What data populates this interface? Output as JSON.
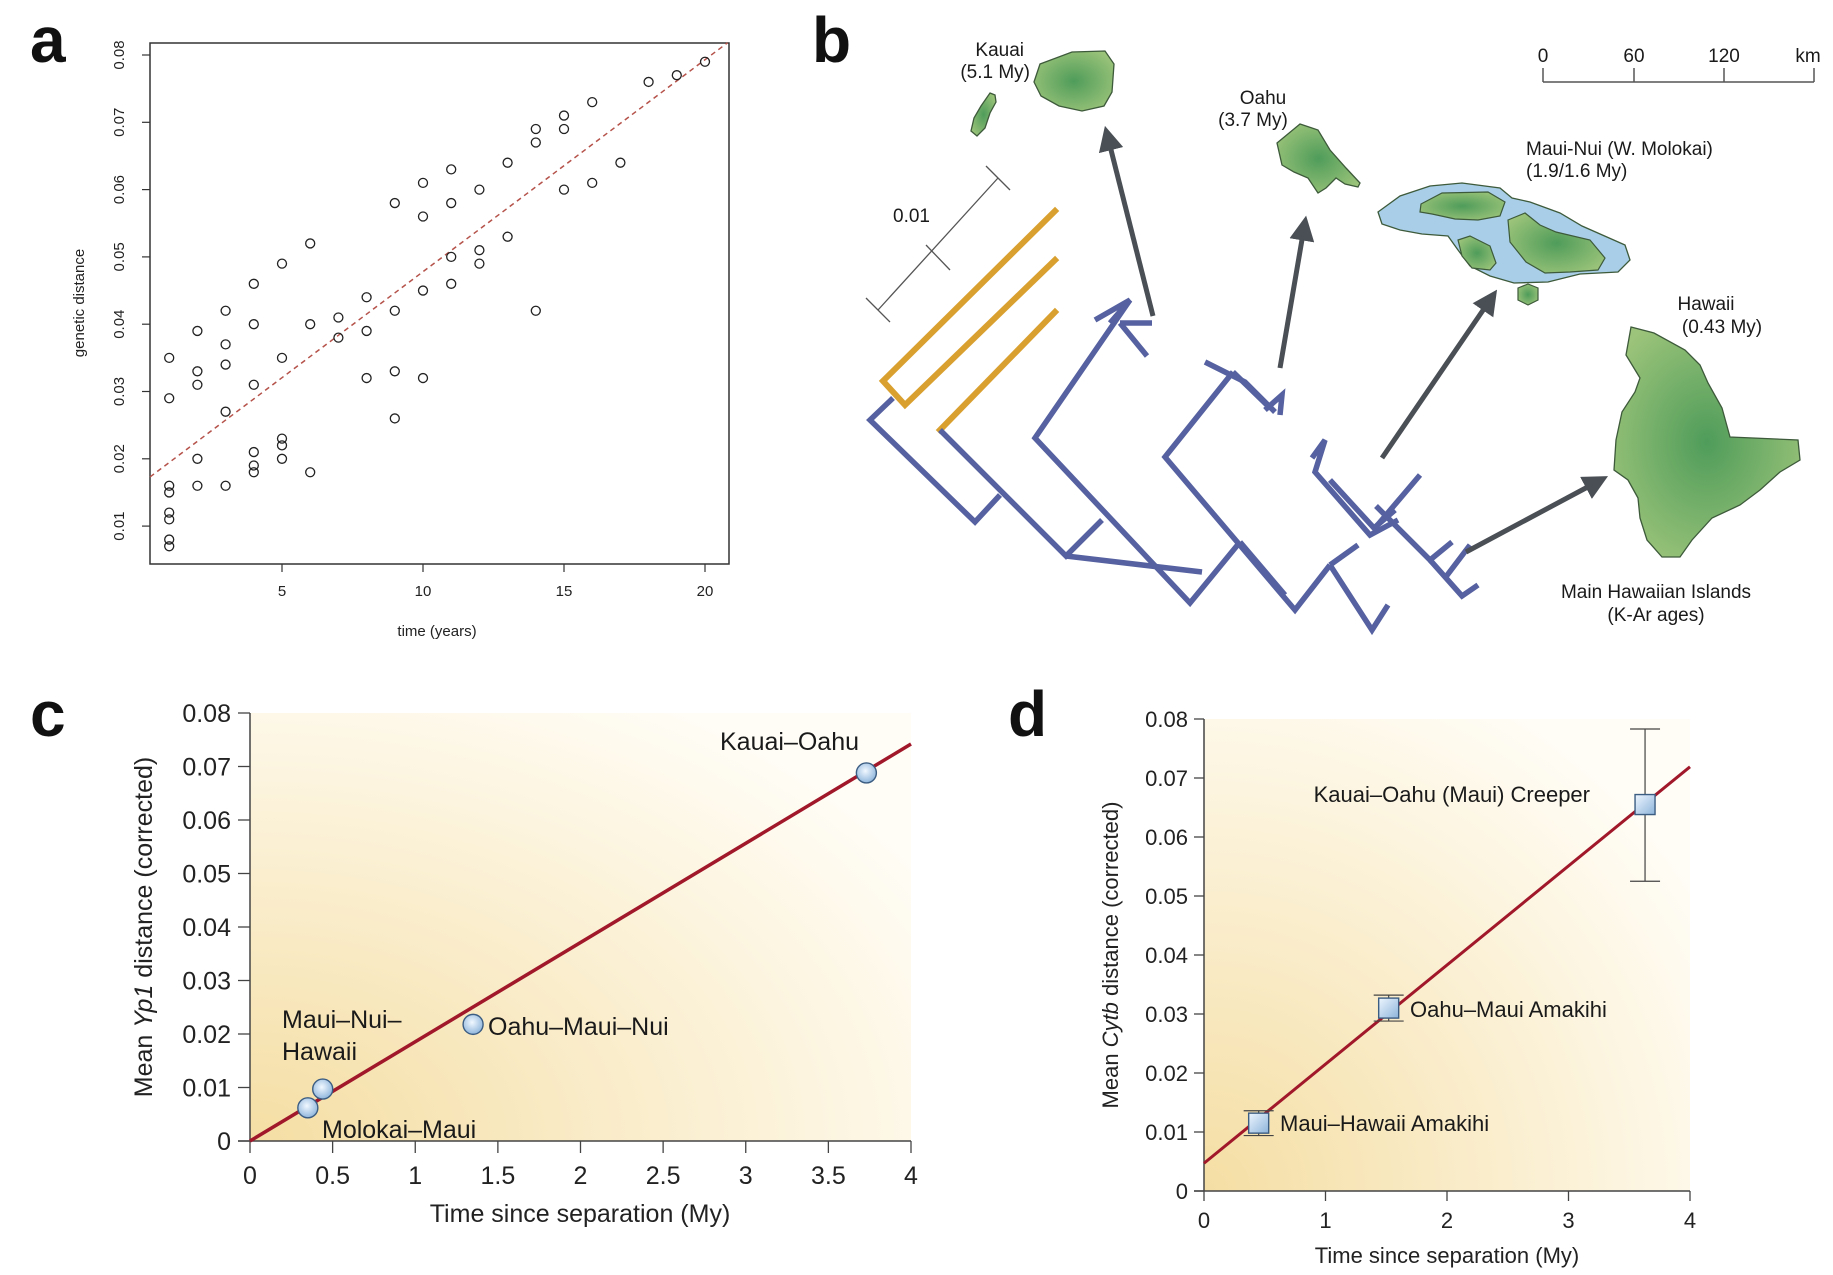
{
  "panels": {
    "a": {
      "letter": "a"
    },
    "b": {
      "letter": "b"
    },
    "c": {
      "letter": "c"
    },
    "d": {
      "letter": "d"
    }
  },
  "map": {
    "scale_bar": {
      "ticks": [
        "0",
        "60",
        "120"
      ],
      "unit": "km"
    },
    "tree_scale_label": "0.01",
    "islands": [
      {
        "id": "kauai",
        "name": "Kauai",
        "age": "(5.1 My)"
      },
      {
        "id": "oahu",
        "name": "Oahu",
        "age": "(3.7 My)"
      },
      {
        "id": "mauinui",
        "name": "Maui-Nui (W. Molokai)",
        "age": "(1.9/1.6 My)"
      },
      {
        "id": "hawaii",
        "name": "Hawaii",
        "age": "(0.43 My)"
      }
    ],
    "caption_line1": "Main Hawaiian Islands",
    "caption_line2": "(K-Ar ages)",
    "colors": {
      "ingroup_branch": "#5561a0",
      "outgroup_branch": "#d9a030",
      "arrow": "#4a4f55",
      "land": "#6aaa5e",
      "shelf": "#a9cfe8"
    }
  },
  "chart_data": [
    {
      "panel": "a",
      "type": "scatter",
      "title": "",
      "xlabel": "time (years)",
      "ylabel": "genetic distance",
      "xlim": [
        0.3,
        20.8
      ],
      "ylim": [
        0.004,
        0.082
      ],
      "xticks": [
        5,
        10,
        15,
        20
      ],
      "yticks": [
        0.01,
        0.02,
        0.03,
        0.04,
        0.05,
        0.06,
        0.07,
        0.08
      ],
      "ytick_labels": [
        "0.01",
        "0.02",
        "0.03",
        "0.04",
        "0.05",
        "0.06",
        "0.07",
        "0.08"
      ],
      "marker": "open-circle",
      "grid": false,
      "points": [
        [
          1,
          0.035
        ],
        [
          1,
          0.029
        ],
        [
          1,
          0.016
        ],
        [
          1,
          0.015
        ],
        [
          1,
          0.012
        ],
        [
          1,
          0.011
        ],
        [
          1,
          0.008
        ],
        [
          1,
          0.007
        ],
        [
          2,
          0.039
        ],
        [
          2,
          0.033
        ],
        [
          2,
          0.031
        ],
        [
          2,
          0.02
        ],
        [
          2,
          0.016
        ],
        [
          3,
          0.042
        ],
        [
          3,
          0.037
        ],
        [
          3,
          0.034
        ],
        [
          3,
          0.027
        ],
        [
          3,
          0.016
        ],
        [
          4,
          0.046
        ],
        [
          4,
          0.04
        ],
        [
          4,
          0.031
        ],
        [
          4,
          0.021
        ],
        [
          4,
          0.019
        ],
        [
          4,
          0.018
        ],
        [
          5,
          0.049
        ],
        [
          5,
          0.035
        ],
        [
          5,
          0.023
        ],
        [
          5,
          0.022
        ],
        [
          5,
          0.02
        ],
        [
          6,
          0.052
        ],
        [
          6,
          0.04
        ],
        [
          6,
          0.018
        ],
        [
          7,
          0.041
        ],
        [
          7,
          0.038
        ],
        [
          8,
          0.044
        ],
        [
          8,
          0.039
        ],
        [
          8,
          0.032
        ],
        [
          9,
          0.058
        ],
        [
          9,
          0.042
        ],
        [
          9,
          0.033
        ],
        [
          9,
          0.026
        ],
        [
          10,
          0.061
        ],
        [
          10,
          0.056
        ],
        [
          10,
          0.045
        ],
        [
          10,
          0.032
        ],
        [
          11,
          0.063
        ],
        [
          11,
          0.058
        ],
        [
          11,
          0.05
        ],
        [
          11,
          0.046
        ],
        [
          12,
          0.06
        ],
        [
          12,
          0.051
        ],
        [
          12,
          0.049
        ],
        [
          13,
          0.064
        ],
        [
          13,
          0.053
        ],
        [
          14,
          0.069
        ],
        [
          14,
          0.067
        ],
        [
          14,
          0.042
        ],
        [
          15,
          0.071
        ],
        [
          15,
          0.069
        ],
        [
          15,
          0.06
        ],
        [
          16,
          0.073
        ],
        [
          16,
          0.061
        ],
        [
          17,
          0.064
        ],
        [
          18,
          0.076
        ],
        [
          19,
          0.077
        ],
        [
          20,
          0.079
        ]
      ],
      "fit_line": {
        "style": "dashed",
        "color": "#b5524a",
        "intercept": 0.0163,
        "slope": 0.00315
      }
    },
    {
      "panel": "c",
      "type": "scatter",
      "xlabel": "Time since separation (My)",
      "ylabel_pre": "Mean ",
      "ylabel_italic": "Yp1",
      "ylabel_post": " distance (corrected)",
      "xlim": [
        0,
        4
      ],
      "ylim": [
        0,
        0.08
      ],
      "xticks": [
        0,
        0.5,
        1,
        1.5,
        2,
        2.5,
        3,
        3.5,
        4
      ],
      "xtick_labels": [
        "0",
        "0.5",
        "1",
        "1.5",
        "2",
        "2.5",
        "3",
        "3.5",
        "4"
      ],
      "yticks": [
        0,
        0.01,
        0.02,
        0.03,
        0.04,
        0.05,
        0.06,
        0.07,
        0.08
      ],
      "ytick_labels": [
        "0",
        "0.01",
        "0.02",
        "0.03",
        "0.04",
        "0.05",
        "0.06",
        "0.07",
        "0.08"
      ],
      "marker": "circle",
      "grid": false,
      "points": [
        {
          "label": "Kauai–Oahu",
          "x": 3.73,
          "y": 0.0688
        },
        {
          "label": "Oahu–Maui–Nui",
          "x": 1.35,
          "y": 0.0218
        },
        {
          "label_line1": "Maui–Nui–",
          "label_line2": "Hawaii",
          "x": 0.44,
          "y": 0.0097
        },
        {
          "label": "Molokai–Maui",
          "x": 0.35,
          "y": 0.0062
        }
      ],
      "fit_line": {
        "color": "#a0182a",
        "intercept": 0.0,
        "slope": 0.01855
      }
    },
    {
      "panel": "d",
      "type": "scatter",
      "xlabel": "Time since separation (My)",
      "ylabel_pre": "Mean ",
      "ylabel_italic": "Cytb",
      "ylabel_post": " distance (corrected)",
      "xlim": [
        0,
        4
      ],
      "ylim": [
        0,
        0.08
      ],
      "xticks": [
        0,
        1,
        2,
        3,
        4
      ],
      "xtick_labels": [
        "0",
        "1",
        "2",
        "3",
        "4"
      ],
      "yticks": [
        0,
        0.01,
        0.02,
        0.03,
        0.04,
        0.05,
        0.06,
        0.07,
        0.08
      ],
      "ytick_labels": [
        "0",
        "0.01",
        "0.02",
        "0.03",
        "0.04",
        "0.05",
        "0.06",
        "0.07",
        "0.08"
      ],
      "marker": "square",
      "grid": false,
      "points": [
        {
          "label": "Maui–Hawaii Amakihi",
          "x": 0.45,
          "y": 0.0115,
          "err_low": 0.0094,
          "err_high": 0.0136
        },
        {
          "label": "Oahu–Maui Amakihi",
          "x": 1.52,
          "y": 0.031,
          "err_low": 0.0288,
          "err_high": 0.0332
        },
        {
          "label": "Kauai–Oahu (Maui) Creeper",
          "x": 3.63,
          "y": 0.0655,
          "err_low": 0.0525,
          "err_high": 0.0783
        }
      ],
      "fit_line": {
        "color": "#a0182a",
        "intercept": 0.0047,
        "slope": 0.0168
      }
    }
  ]
}
